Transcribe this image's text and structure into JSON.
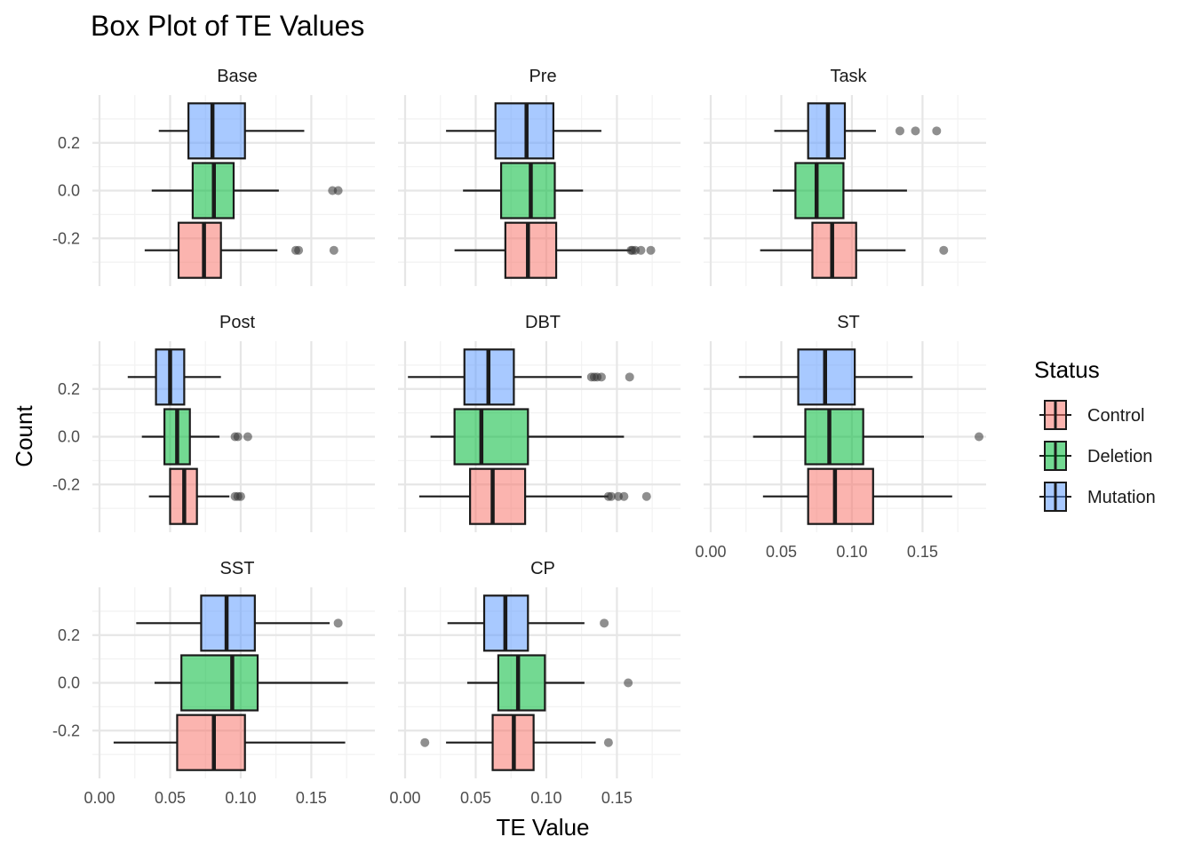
{
  "chart_data": {
    "type": "box",
    "title": "Box Plot of TE Values",
    "xlabel": "TE Value",
    "ylabel": "Count",
    "xlim": [
      0.0,
      0.19
    ],
    "ylim": [
      -0.4,
      0.4
    ],
    "x_ticks": [
      "0.00",
      "0.05",
      "0.10",
      "0.15"
    ],
    "x_tick_values": [
      0.0,
      0.05,
      0.1,
      0.15
    ],
    "y_ticks": [
      "0.2",
      "0.0",
      "-0.2"
    ],
    "y_tick_values": [
      0.2,
      0.0,
      -0.2
    ],
    "grid": true,
    "legend": {
      "title": "Status",
      "position": "right",
      "items": [
        {
          "label": "Control",
          "color": "#f8766d"
        },
        {
          "label": "Deletion",
          "color": "#00ba38"
        },
        {
          "label": "Mutation",
          "color": "#619cff"
        }
      ]
    },
    "group_positions": {
      "Mutation": 0.25,
      "Deletion": 0.0,
      "Control": -0.25
    },
    "panels": [
      {
        "name": "Base",
        "boxes": [
          {
            "group": "Mutation",
            "whisker_low": 0.042,
            "q1": 0.063,
            "median": 0.08,
            "q3": 0.103,
            "whisker_high": 0.145,
            "outliers": []
          },
          {
            "group": "Deletion",
            "whisker_low": 0.037,
            "q1": 0.066,
            "median": 0.081,
            "q3": 0.095,
            "whisker_high": 0.127,
            "outliers": [
              0.165,
              0.169
            ]
          },
          {
            "group": "Control",
            "whisker_low": 0.032,
            "q1": 0.056,
            "median": 0.074,
            "q3": 0.086,
            "whisker_high": 0.126,
            "outliers": [
              0.139,
              0.141,
              0.166
            ]
          }
        ]
      },
      {
        "name": "Pre",
        "boxes": [
          {
            "group": "Mutation",
            "whisker_low": 0.029,
            "q1": 0.064,
            "median": 0.086,
            "q3": 0.105,
            "whisker_high": 0.139,
            "outliers": []
          },
          {
            "group": "Deletion",
            "whisker_low": 0.041,
            "q1": 0.068,
            "median": 0.089,
            "q3": 0.106,
            "whisker_high": 0.126,
            "outliers": []
          },
          {
            "group": "Control",
            "whisker_low": 0.035,
            "q1": 0.071,
            "median": 0.087,
            "q3": 0.107,
            "whisker_high": 0.16,
            "outliers": [
              0.16,
              0.161,
              0.163,
              0.167,
              0.174
            ]
          }
        ]
      },
      {
        "name": "Task",
        "boxes": [
          {
            "group": "Mutation",
            "whisker_low": 0.045,
            "q1": 0.069,
            "median": 0.083,
            "q3": 0.095,
            "whisker_high": 0.117,
            "outliers": [
              0.134,
              0.145,
              0.16
            ]
          },
          {
            "group": "Deletion",
            "whisker_low": 0.044,
            "q1": 0.06,
            "median": 0.075,
            "q3": 0.094,
            "whisker_high": 0.139,
            "outliers": []
          },
          {
            "group": "Control",
            "whisker_low": 0.035,
            "q1": 0.072,
            "median": 0.086,
            "q3": 0.103,
            "whisker_high": 0.138,
            "outliers": [
              0.165
            ]
          }
        ]
      },
      {
        "name": "Post",
        "boxes": [
          {
            "group": "Mutation",
            "whisker_low": 0.02,
            "q1": 0.04,
            "median": 0.05,
            "q3": 0.06,
            "whisker_high": 0.086,
            "outliers": []
          },
          {
            "group": "Deletion",
            "whisker_low": 0.03,
            "q1": 0.046,
            "median": 0.055,
            "q3": 0.064,
            "whisker_high": 0.085,
            "outliers": [
              0.096,
              0.098,
              0.105
            ]
          },
          {
            "group": "Control",
            "whisker_low": 0.035,
            "q1": 0.05,
            "median": 0.06,
            "q3": 0.069,
            "whisker_high": 0.092,
            "outliers": [
              0.096,
              0.098,
              0.1
            ]
          }
        ]
      },
      {
        "name": "DBT",
        "boxes": [
          {
            "group": "Mutation",
            "whisker_low": 0.002,
            "q1": 0.042,
            "median": 0.059,
            "q3": 0.077,
            "whisker_high": 0.125,
            "outliers": [
              0.132,
              0.134,
              0.136,
              0.139,
              0.159
            ]
          },
          {
            "group": "Deletion",
            "whisker_low": 0.018,
            "q1": 0.035,
            "median": 0.054,
            "q3": 0.087,
            "whisker_high": 0.155,
            "outliers": []
          },
          {
            "group": "Control",
            "whisker_low": 0.01,
            "q1": 0.046,
            "median": 0.062,
            "q3": 0.085,
            "whisker_high": 0.144,
            "outliers": [
              0.144,
              0.146,
              0.151,
              0.155,
              0.171
            ]
          }
        ]
      },
      {
        "name": "ST",
        "boxes": [
          {
            "group": "Mutation",
            "whisker_low": 0.02,
            "q1": 0.062,
            "median": 0.081,
            "q3": 0.102,
            "whisker_high": 0.143,
            "outliers": []
          },
          {
            "group": "Deletion",
            "whisker_low": 0.03,
            "q1": 0.067,
            "median": 0.084,
            "q3": 0.108,
            "whisker_high": 0.151,
            "outliers": [
              0.19
            ]
          },
          {
            "group": "Control",
            "whisker_low": 0.037,
            "q1": 0.069,
            "median": 0.088,
            "q3": 0.115,
            "whisker_high": 0.171,
            "outliers": []
          }
        ]
      },
      {
        "name": "SST",
        "boxes": [
          {
            "group": "Mutation",
            "whisker_low": 0.026,
            "q1": 0.072,
            "median": 0.09,
            "q3": 0.11,
            "whisker_high": 0.163,
            "outliers": [
              0.169
            ]
          },
          {
            "group": "Deletion",
            "whisker_low": 0.039,
            "q1": 0.058,
            "median": 0.094,
            "q3": 0.112,
            "whisker_high": 0.176,
            "outliers": []
          },
          {
            "group": "Control",
            "whisker_low": 0.01,
            "q1": 0.055,
            "median": 0.081,
            "q3": 0.103,
            "whisker_high": 0.174,
            "outliers": []
          }
        ]
      },
      {
        "name": "CP",
        "boxes": [
          {
            "group": "Mutation",
            "whisker_low": 0.03,
            "q1": 0.056,
            "median": 0.071,
            "q3": 0.087,
            "whisker_high": 0.127,
            "outliers": [
              0.141
            ]
          },
          {
            "group": "Deletion",
            "whisker_low": 0.044,
            "q1": 0.066,
            "median": 0.08,
            "q3": 0.099,
            "whisker_high": 0.127,
            "outliers": [
              0.158
            ]
          },
          {
            "group": "Control",
            "whisker_low": 0.029,
            "q1": 0.062,
            "median": 0.077,
            "q3": 0.091,
            "whisker_high": 0.135,
            "outliers": [
              0.014,
              0.144
            ]
          }
        ]
      }
    ]
  }
}
